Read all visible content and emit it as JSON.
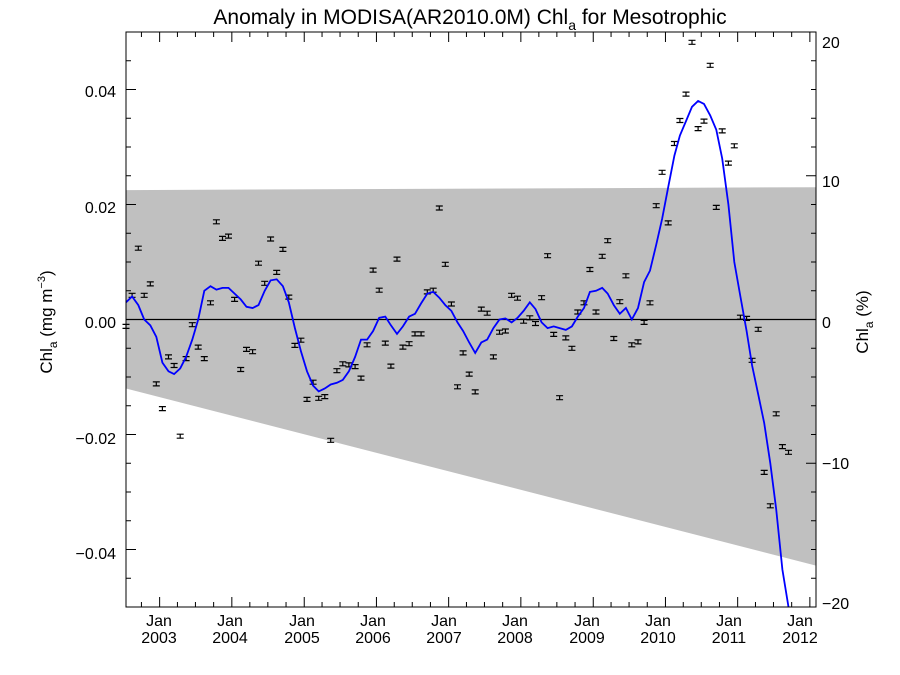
{
  "chart_data": {
    "type": "scatter",
    "title": {
      "main": "Anomaly in MODISA(AR2010.0M) Chl",
      "sub": "a",
      "tail": " for Mesotrophic"
    },
    "ylabel_left": {
      "main": "Chl",
      "sub": "a",
      "tail": " (mg m",
      "sup": "−3",
      "end": ")"
    },
    "ylabel_right": {
      "main": "Chl",
      "sub": "a",
      "tail": " (%)"
    },
    "x_range": [
      "2002-07-15",
      "2012-02-01"
    ],
    "ylim_left": [
      -0.05,
      0.05
    ],
    "ylim_right": [
      -20,
      20
    ],
    "y_ticks_left": [
      "0.04",
      "0.02",
      "0.00",
      "−0.02",
      "−0.04"
    ],
    "y_ticks_right": [
      "20",
      "10",
      "0",
      "−10",
      "−20"
    ],
    "x_tick_labels": [
      {
        "top": "Jan",
        "bottom": "2003"
      },
      {
        "top": "Jan",
        "bottom": "2004"
      },
      {
        "top": "Jan",
        "bottom": "2005"
      },
      {
        "top": "Jan",
        "bottom": "2006"
      },
      {
        "top": "Jan",
        "bottom": "2007"
      },
      {
        "top": "Jan",
        "bottom": "2008"
      },
      {
        "top": "Jan",
        "bottom": "2009"
      },
      {
        "top": "Jan",
        "bottom": "2010"
      },
      {
        "top": "Jan",
        "bottom": "2011"
      },
      {
        "top": "Jan",
        "bottom": "2012"
      }
    ],
    "shaded_band": {
      "color": "#c0c0c0",
      "upper": [
        [
          "2002-07-15",
          0.0225
        ],
        [
          "2012-02-01",
          0.023
        ]
      ],
      "lower": [
        [
          "2002-07-15",
          -0.012
        ],
        [
          "2012-02-01",
          -0.0428
        ]
      ]
    },
    "zero_line": 0,
    "colors": {
      "smoothed_line": "#0000ff",
      "points": "#000000"
    },
    "series": [
      {
        "kind": "monthly_anomaly_with_errorbars",
        "points": [
          [
            "2002-07-15",
            -0.0012
          ],
          [
            "2002-08-15",
            0.0042
          ],
          [
            "2002-09-15",
            0.0124
          ],
          [
            "2002-10-15",
            0.0042
          ],
          [
            "2002-11-15",
            0.0062
          ],
          [
            "2002-12-15",
            -0.0112
          ],
          [
            "2003-01-15",
            -0.0155
          ],
          [
            "2003-02-15",
            -0.0065
          ],
          [
            "2003-03-15",
            -0.008
          ],
          [
            "2003-04-15",
            -0.0203
          ],
          [
            "2003-05-15",
            -0.0068
          ],
          [
            "2003-06-15",
            -0.0009
          ],
          [
            "2003-07-15",
            -0.0048
          ],
          [
            "2003-08-15",
            -0.0068
          ],
          [
            "2003-09-15",
            0.0029
          ],
          [
            "2003-10-15",
            0.017
          ],
          [
            "2003-11-15",
            0.0141
          ],
          [
            "2003-12-15",
            0.0145
          ],
          [
            "2004-01-15",
            0.0035
          ],
          [
            "2004-02-15",
            -0.0087
          ],
          [
            "2004-03-15",
            -0.0052
          ],
          [
            "2004-04-15",
            -0.0056
          ],
          [
            "2004-05-15",
            0.0098
          ],
          [
            "2004-06-15",
            0.0063
          ],
          [
            "2004-07-15",
            0.014
          ],
          [
            "2004-08-15",
            0.0082
          ],
          [
            "2004-09-15",
            0.0122
          ],
          [
            "2004-10-15",
            0.0039
          ],
          [
            "2004-11-15",
            -0.0045
          ],
          [
            "2004-12-15",
            -0.0036
          ],
          [
            "2005-01-15",
            -0.0139
          ],
          [
            "2005-02-15",
            -0.0109
          ],
          [
            "2005-03-15",
            -0.0137
          ],
          [
            "2005-04-15",
            -0.0134
          ],
          [
            "2005-05-15",
            -0.021
          ],
          [
            "2005-06-15",
            -0.0089
          ],
          [
            "2005-07-15",
            -0.0077
          ],
          [
            "2005-08-15",
            -0.0079
          ],
          [
            "2005-09-15",
            -0.0082
          ],
          [
            "2005-10-15",
            -0.0102
          ],
          [
            "2005-11-15",
            -0.0044
          ],
          [
            "2005-12-15",
            0.0086
          ],
          [
            "2006-01-15",
            0.0051
          ],
          [
            "2006-02-15",
            -0.0041
          ],
          [
            "2006-03-15",
            -0.0081
          ],
          [
            "2006-04-15",
            0.0105
          ],
          [
            "2006-05-15",
            -0.0048
          ],
          [
            "2006-06-15",
            -0.0042
          ],
          [
            "2006-07-15",
            -0.0025
          ],
          [
            "2006-08-15",
            -0.0025
          ],
          [
            "2006-09-15",
            0.0048
          ],
          [
            "2006-10-15",
            0.0051
          ],
          [
            "2006-11-15",
            0.0194
          ],
          [
            "2006-12-15",
            0.0096
          ],
          [
            "2007-01-15",
            0.0027
          ],
          [
            "2007-02-15",
            -0.0117
          ],
          [
            "2007-03-15",
            -0.0058
          ],
          [
            "2007-04-15",
            -0.0095
          ],
          [
            "2007-05-15",
            -0.0126
          ],
          [
            "2007-06-15",
            0.0018
          ],
          [
            "2007-07-15",
            0.0011
          ],
          [
            "2007-08-15",
            -0.0065
          ],
          [
            "2007-09-15",
            -0.0022
          ],
          [
            "2007-10-15",
            -0.002
          ],
          [
            "2007-11-15",
            0.0042
          ],
          [
            "2007-12-15",
            0.0037
          ],
          [
            "2008-01-15",
            -0.0003
          ],
          [
            "2008-02-15",
            0.0003
          ],
          [
            "2008-03-15",
            -0.0007
          ],
          [
            "2008-04-15",
            0.0038
          ],
          [
            "2008-05-15",
            0.0111
          ],
          [
            "2008-06-15",
            -0.0026
          ],
          [
            "2008-07-15",
            -0.0136
          ],
          [
            "2008-08-15",
            -0.0032
          ],
          [
            "2008-09-15",
            -0.005
          ],
          [
            "2008-10-15",
            0.0013
          ],
          [
            "2008-11-15",
            0.0029
          ],
          [
            "2008-12-15",
            0.0087
          ],
          [
            "2009-01-15",
            0.0013
          ],
          [
            "2009-02-15",
            0.011
          ],
          [
            "2009-03-15",
            0.0137
          ],
          [
            "2009-04-15",
            -0.0033
          ],
          [
            "2009-05-15",
            0.0031
          ],
          [
            "2009-06-15",
            0.0076
          ],
          [
            "2009-07-15",
            -0.0044
          ],
          [
            "2009-08-15",
            -0.0039
          ],
          [
            "2009-09-15",
            -0.0005
          ],
          [
            "2009-10-15",
            0.0029
          ],
          [
            "2009-11-15",
            0.0198
          ],
          [
            "2009-12-15",
            0.0256
          ],
          [
            "2010-01-15",
            0.0168
          ],
          [
            "2010-02-15",
            0.0306
          ],
          [
            "2010-03-15",
            0.0346
          ],
          [
            "2010-04-15",
            0.0392
          ],
          [
            "2010-05-15",
            0.0482
          ],
          [
            "2010-06-15",
            0.0332
          ],
          [
            "2010-07-15",
            0.0345
          ],
          [
            "2010-08-15",
            0.0442
          ],
          [
            "2010-09-15",
            0.0195
          ],
          [
            "2010-10-15",
            0.0328
          ],
          [
            "2010-11-15",
            0.0272
          ],
          [
            "2010-12-15",
            0.0302
          ],
          [
            "2011-01-15",
            0.0004
          ],
          [
            "2011-02-15",
            0.0002
          ],
          [
            "2011-03-15",
            -0.0071
          ],
          [
            "2011-04-15",
            -0.0017
          ],
          [
            "2011-05-15",
            -0.0266
          ],
          [
            "2011-06-15",
            -0.0324
          ],
          [
            "2011-07-15",
            -0.0164
          ],
          [
            "2011-08-15",
            -0.0221
          ],
          [
            "2011-09-15",
            -0.0231
          ]
        ]
      },
      {
        "kind": "smoothed",
        "points": [
          [
            "2002-07-15",
            0.003
          ],
          [
            "2002-08-15",
            0.004
          ],
          [
            "2002-09-15",
            0.0025
          ],
          [
            "2002-10-15",
            0.0
          ],
          [
            "2002-11-15",
            -0.001
          ],
          [
            "2002-12-15",
            -0.003
          ],
          [
            "2003-01-15",
            -0.0075
          ],
          [
            "2003-02-15",
            -0.009
          ],
          [
            "2003-03-15",
            -0.0095
          ],
          [
            "2003-04-15",
            -0.0085
          ],
          [
            "2003-05-15",
            -0.0065
          ],
          [
            "2003-06-15",
            -0.0035
          ],
          [
            "2003-07-15",
            0.0
          ],
          [
            "2003-08-15",
            0.005
          ],
          [
            "2003-09-15",
            0.0058
          ],
          [
            "2003-10-15",
            0.0052
          ],
          [
            "2003-11-15",
            0.0055
          ],
          [
            "2003-12-15",
            0.0055
          ],
          [
            "2004-01-15",
            0.0045
          ],
          [
            "2004-02-15",
            0.0035
          ],
          [
            "2004-03-15",
            0.0022
          ],
          [
            "2004-04-15",
            0.002
          ],
          [
            "2004-05-15",
            0.0025
          ],
          [
            "2004-06-15",
            0.005
          ],
          [
            "2004-07-15",
            0.0068
          ],
          [
            "2004-08-15",
            0.007
          ],
          [
            "2004-09-15",
            0.0058
          ],
          [
            "2004-10-15",
            0.003
          ],
          [
            "2004-11-15",
            -0.0015
          ],
          [
            "2004-12-15",
            -0.0055
          ],
          [
            "2005-01-15",
            -0.009
          ],
          [
            "2005-02-15",
            -0.0115
          ],
          [
            "2005-03-15",
            -0.0125
          ],
          [
            "2005-04-15",
            -0.012
          ],
          [
            "2005-05-15",
            -0.0113
          ],
          [
            "2005-06-15",
            -0.011
          ],
          [
            "2005-07-15",
            -0.0105
          ],
          [
            "2005-08-15",
            -0.009
          ],
          [
            "2005-09-15",
            -0.0065
          ],
          [
            "2005-10-15",
            -0.0035
          ],
          [
            "2005-11-15",
            -0.0035
          ],
          [
            "2005-12-15",
            -0.002
          ],
          [
            "2006-01-15",
            0.0003
          ],
          [
            "2006-02-15",
            0.0005
          ],
          [
            "2006-03-15",
            -0.001
          ],
          [
            "2006-04-15",
            -0.0025
          ],
          [
            "2006-05-15",
            -0.0012
          ],
          [
            "2006-06-15",
            0.0005
          ],
          [
            "2006-07-15",
            0.001
          ],
          [
            "2006-08-15",
            0.0028
          ],
          [
            "2006-09-15",
            0.0045
          ],
          [
            "2006-10-15",
            0.0048
          ],
          [
            "2006-11-15",
            0.0038
          ],
          [
            "2006-12-15",
            0.0025
          ],
          [
            "2007-01-15",
            0.0015
          ],
          [
            "2007-02-15",
            -0.0005
          ],
          [
            "2007-03-15",
            -0.002
          ],
          [
            "2007-04-15",
            -0.004
          ],
          [
            "2007-05-15",
            -0.0058
          ],
          [
            "2007-06-15",
            -0.004
          ],
          [
            "2007-07-15",
            -0.0035
          ],
          [
            "2007-08-15",
            -0.0015
          ],
          [
            "2007-09-15",
            0.0
          ],
          [
            "2007-10-15",
            0.0002
          ],
          [
            "2007-11-15",
            -0.0005
          ],
          [
            "2007-12-15",
            0.0003
          ],
          [
            "2008-01-15",
            0.0015
          ],
          [
            "2008-02-15",
            0.003
          ],
          [
            "2008-03-15",
            0.0018
          ],
          [
            "2008-04-15",
            -0.0005
          ],
          [
            "2008-05-15",
            -0.0015
          ],
          [
            "2008-06-15",
            -0.0012
          ],
          [
            "2008-07-15",
            -0.0015
          ],
          [
            "2008-08-15",
            -0.0018
          ],
          [
            "2008-09-15",
            -0.0012
          ],
          [
            "2008-10-15",
            0.0005
          ],
          [
            "2008-11-15",
            0.002
          ],
          [
            "2008-12-15",
            0.0048
          ],
          [
            "2009-01-15",
            0.005
          ],
          [
            "2009-02-15",
            0.0055
          ],
          [
            "2009-03-15",
            0.0045
          ],
          [
            "2009-04-15",
            0.0025
          ],
          [
            "2009-05-15",
            0.001
          ],
          [
            "2009-06-15",
            0.002
          ],
          [
            "2009-07-15",
            0.0
          ],
          [
            "2009-08-15",
            0.002
          ],
          [
            "2009-09-15",
            0.0065
          ],
          [
            "2009-10-15",
            0.0085
          ],
          [
            "2009-11-15",
            0.013
          ],
          [
            "2009-12-15",
            0.0175
          ],
          [
            "2010-01-15",
            0.023
          ],
          [
            "2010-02-15",
            0.0285
          ],
          [
            "2010-03-15",
            0.032
          ],
          [
            "2010-04-15",
            0.0345
          ],
          [
            "2010-05-15",
            0.037
          ],
          [
            "2010-06-15",
            0.038
          ],
          [
            "2010-07-15",
            0.0375
          ],
          [
            "2010-08-15",
            0.0355
          ],
          [
            "2010-09-15",
            0.033
          ],
          [
            "2010-10-15",
            0.028
          ],
          [
            "2010-11-15",
            0.02
          ],
          [
            "2010-12-15",
            0.01
          ],
          [
            "2011-01-15",
            0.004
          ],
          [
            "2011-02-15",
            -0.002
          ],
          [
            "2011-03-15",
            -0.008
          ],
          [
            "2011-04-15",
            -0.013
          ],
          [
            "2011-05-15",
            -0.018
          ],
          [
            "2011-06-15",
            -0.025
          ],
          [
            "2011-07-15",
            -0.033
          ],
          [
            "2011-08-15",
            -0.0435
          ],
          [
            "2011-09-15",
            -0.05
          ]
        ]
      }
    ]
  }
}
